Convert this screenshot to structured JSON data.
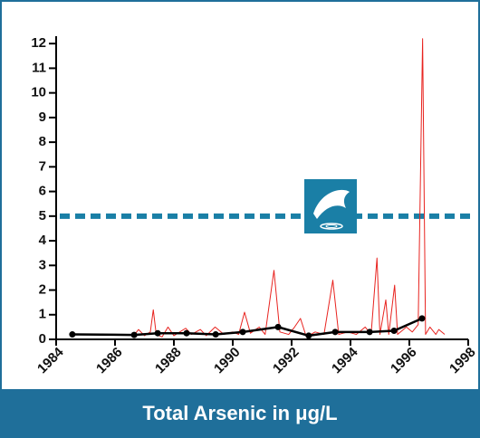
{
  "chart_data": {
    "type": "line",
    "title": "Total Arsenic in μg/L",
    "xlim": [
      1984,
      1998
    ],
    "xticks": [
      1984,
      1986,
      1988,
      1990,
      1992,
      1994,
      1996,
      1998
    ],
    "ylim": [
      0,
      12.3
    ],
    "yticks": [
      0,
      1,
      2,
      3,
      4,
      5,
      6,
      7,
      8,
      9,
      10,
      11,
      12
    ],
    "reference_line": {
      "value": 5,
      "color": "#1a7fa6"
    },
    "series": [
      {
        "color": "#e8231f",
        "x": [
          1986.6,
          1986.8,
          1987.0,
          1987.2,
          1987.3,
          1987.4,
          1987.6,
          1987.8,
          1988.0,
          1988.2,
          1988.4,
          1988.6,
          1988.9,
          1989.1,
          1989.4,
          1989.7,
          1990.0,
          1990.2,
          1990.4,
          1990.6,
          1990.9,
          1991.1,
          1991.4,
          1991.6,
          1991.9,
          1992.1,
          1992.3,
          1992.5,
          1992.8,
          1993.1,
          1993.4,
          1993.6,
          1993.9,
          1994.2,
          1994.5,
          1994.7,
          1994.9,
          1995.0,
          1995.2,
          1995.3,
          1995.5,
          1995.6,
          1995.9,
          1996.1,
          1996.3,
          1996.45,
          1996.55,
          1996.7,
          1996.9,
          1997.0,
          1997.2
        ],
        "values": [
          0.1,
          0.4,
          0.15,
          0.3,
          1.2,
          0.2,
          0.1,
          0.5,
          0.15,
          0.3,
          0.45,
          0.2,
          0.4,
          0.15,
          0.5,
          0.2,
          0.3,
          0.2,
          1.1,
          0.25,
          0.5,
          0.2,
          2.8,
          0.3,
          0.2,
          0.5,
          0.85,
          0.1,
          0.3,
          0.2,
          2.4,
          0.2,
          0.3,
          0.2,
          0.5,
          0.2,
          3.3,
          0.2,
          1.6,
          0.2,
          2.2,
          0.2,
          0.5,
          0.3,
          0.6,
          12.2,
          0.2,
          0.5,
          0.2,
          0.4,
          0.2
        ]
      },
      {
        "color": "#000000",
        "markers": true,
        "x": [
          1984.55,
          1986.65,
          1987.45,
          1988.43,
          1989.42,
          1990.34,
          1991.54,
          1992.58,
          1993.48,
          1994.65,
          1995.48,
          1996.43
        ],
        "values": [
          0.2,
          0.18,
          0.25,
          0.25,
          0.2,
          0.3,
          0.5,
          0.15,
          0.3,
          0.3,
          0.35,
          0.85
        ]
      }
    ]
  }
}
